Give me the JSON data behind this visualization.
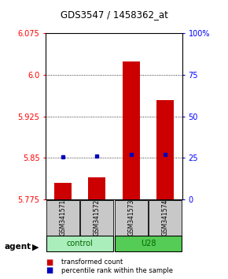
{
  "title": "GDS3547 / 1458362_at",
  "samples": [
    "GSM341571",
    "GSM341572",
    "GSM341573",
    "GSM341574"
  ],
  "groups": [
    "control",
    "control",
    "U28",
    "U28"
  ],
  "red_values": [
    5.805,
    5.815,
    6.025,
    5.955
  ],
  "blue_values": [
    5.852,
    5.853,
    5.857,
    5.856
  ],
  "ylim_left": [
    5.775,
    6.075
  ],
  "ylim_right": [
    0,
    100
  ],
  "left_ticks": [
    5.775,
    5.85,
    5.925,
    6.0,
    6.075
  ],
  "right_ticks": [
    0,
    25,
    50,
    75,
    100
  ],
  "grid_lines": [
    5.85,
    5.925,
    6.0
  ],
  "bar_bottom": 5.775,
  "red_color": "#CC0000",
  "blue_color": "#0000BB",
  "sample_box_color": "#C8C8C8",
  "ctrl_color": "#AAEEBB",
  "u28_color": "#55CC55",
  "legend_red": "transformed count",
  "legend_blue": "percentile rank within the sample"
}
